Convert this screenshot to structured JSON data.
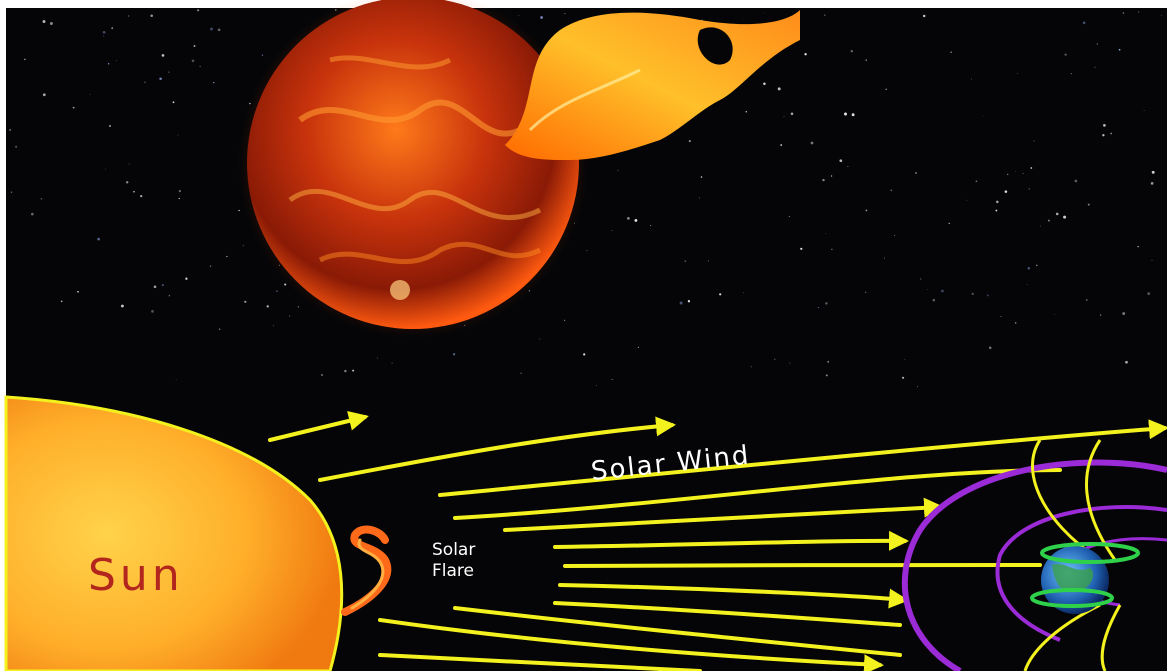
{
  "diagram": {
    "labels": {
      "sun": "Sun",
      "solar_wind": "Solar Wind",
      "solar_flare_line1": "Solar",
      "solar_flare_line2": "Flare"
    }
  },
  "colors": {
    "space": "#050507",
    "sun_core": "#ffd54a",
    "sun_edge": "#f08a10",
    "sun_text": "#b3261e",
    "field_lines": "#f4f21e",
    "magnetosphere": "#9a2bd6",
    "earth_ring": "#2fd14a",
    "photo_sun": "#c0280a",
    "flare": "#ffb020"
  }
}
